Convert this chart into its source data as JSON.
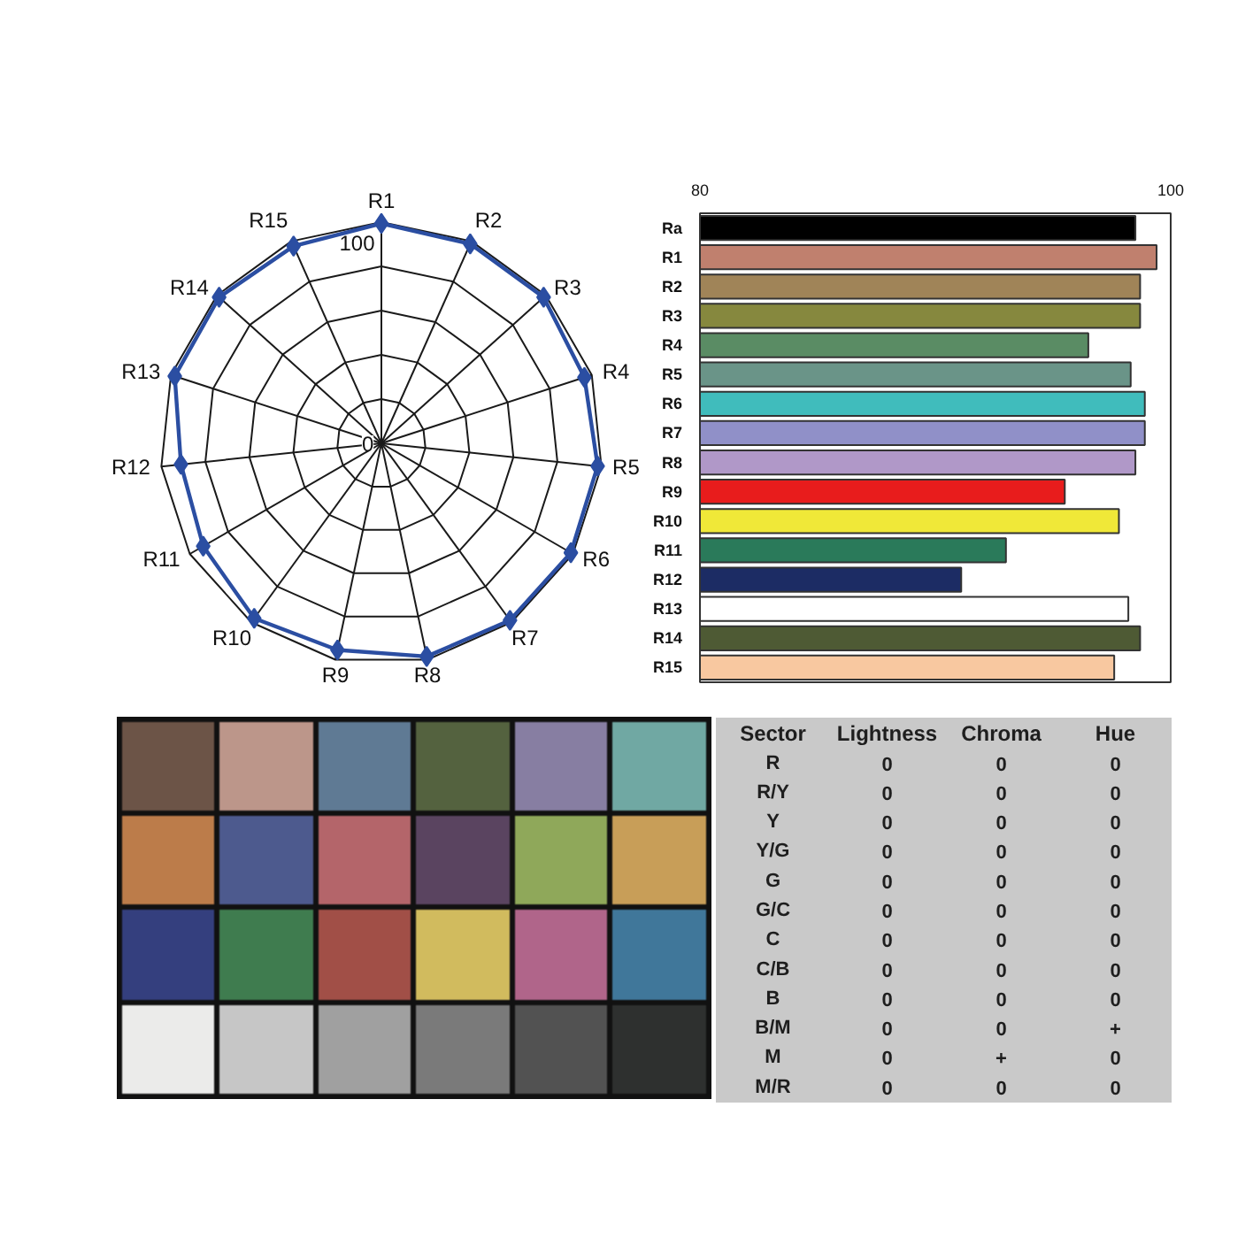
{
  "chart_data": [
    {
      "type": "radar",
      "categories": [
        "R1",
        "R2",
        "R3",
        "R4",
        "R5",
        "R6",
        "R7",
        "R8",
        "R9",
        "R10",
        "R11",
        "R12",
        "R13",
        "R14",
        "R15"
      ],
      "series": [
        {
          "color": "#2b4ea2",
          "values": [
            99.4,
            98.7,
            98.7,
            96.5,
            98.3,
            98.9,
            98.9,
            98.5,
            95.5,
            97.8,
            93.0,
            91.1,
            98.2,
            98.7,
            97.6
          ]
        }
      ],
      "ylim": [
        0,
        100
      ],
      "yticks": [
        0,
        100
      ],
      "grid": true,
      "marker": "diamond"
    },
    {
      "type": "bar",
      "orientation": "horizontal",
      "categories": [
        "Ra",
        "R1",
        "R2",
        "R3",
        "R4",
        "R5",
        "R6",
        "R7",
        "R8",
        "R9",
        "R10",
        "R11",
        "R12",
        "R13",
        "R14",
        "R15"
      ],
      "values": [
        98.5,
        99.4,
        98.7,
        98.7,
        96.5,
        98.3,
        98.9,
        98.9,
        98.5,
        95.5,
        97.8,
        93.0,
        91.1,
        98.2,
        98.7,
        97.6
      ],
      "colors": [
        "#000000",
        "#c0806e",
        "#a08458",
        "#86883e",
        "#5a8c64",
        "#6a9488",
        "#40bcbc",
        "#9090c8",
        "#b098c8",
        "#e81c1c",
        "#f0e838",
        "#2a7a5a",
        "#1c2c64",
        "#ffffff",
        "#4e5a34",
        "#f8c8a0"
      ],
      "xlim": [
        80,
        100
      ],
      "xticks": [
        80,
        100
      ]
    },
    {
      "type": "heatmap",
      "ylabel": "Sector",
      "categories": [
        "Lightness",
        "Chroma",
        "Hue"
      ],
      "y_categories": [
        "R",
        "R/Y",
        "Y",
        "Y/G",
        "G",
        "G/C",
        "C",
        "C/B",
        "B",
        "B/M",
        "M",
        "M/R"
      ],
      "color": "#c9c9c9",
      "cells": [
        [
          0,
          0,
          0
        ],
        [
          0,
          0,
          0
        ],
        [
          0,
          0,
          0
        ],
        [
          0,
          0,
          0
        ],
        [
          0,
          0,
          0
        ],
        [
          0,
          0,
          0
        ],
        [
          0,
          0,
          0
        ],
        [
          0,
          0,
          0
        ],
        [
          0,
          0,
          0
        ],
        [
          0,
          0,
          null
        ],
        [
          0,
          null,
          0
        ],
        [
          0,
          0,
          0
        ]
      ],
      "cell_labels": [
        [
          "0",
          "0",
          "0"
        ],
        [
          "0",
          "0",
          "0"
        ],
        [
          "0",
          "0",
          "0"
        ],
        [
          "0",
          "0",
          "0"
        ],
        [
          "0",
          "0",
          "0"
        ],
        [
          "0",
          "0",
          "0"
        ],
        [
          "0",
          "0",
          "0"
        ],
        [
          "0",
          "0",
          "0"
        ],
        [
          "0",
          "0",
          "0"
        ],
        [
          "0",
          "0",
          "+"
        ],
        [
          "0",
          "+",
          "0"
        ],
        [
          "0",
          "0",
          "0"
        ]
      ]
    }
  ]
}
